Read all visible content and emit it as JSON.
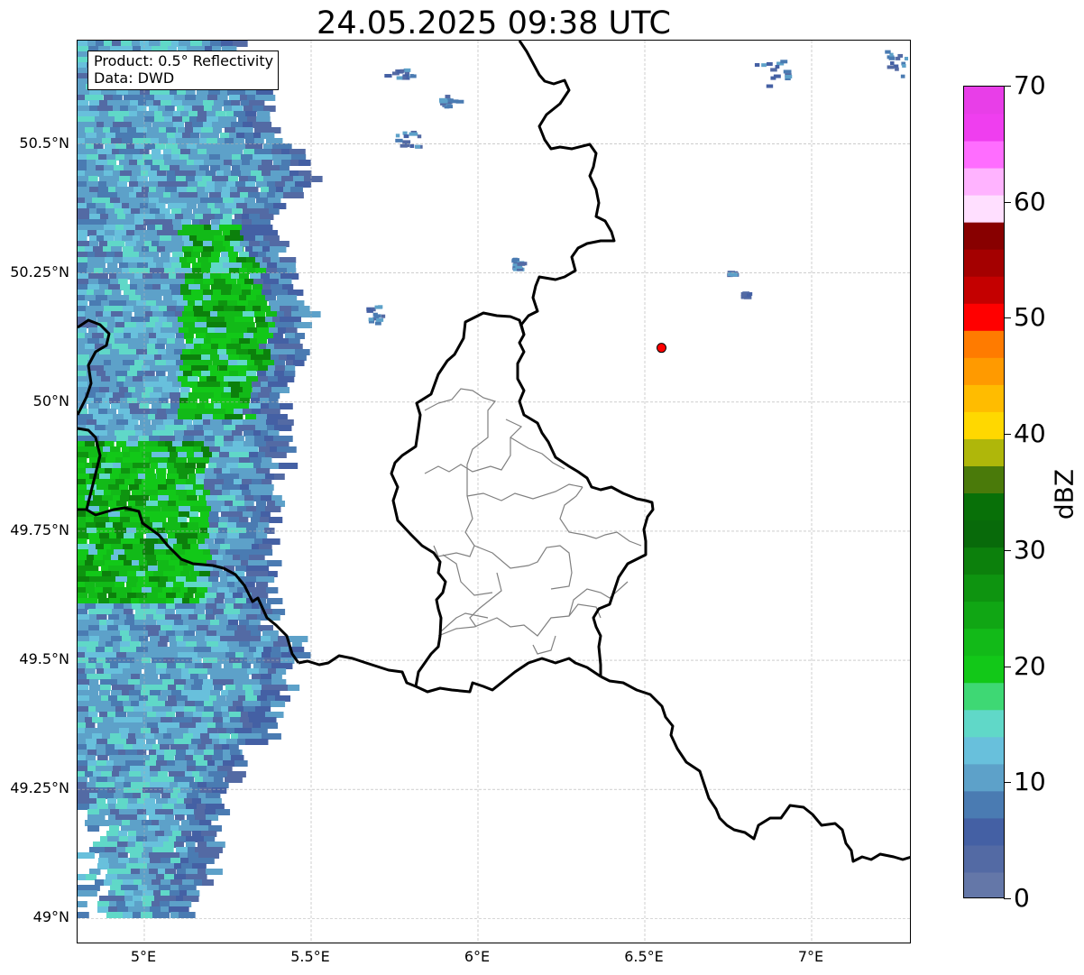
{
  "title": "24.05.2025 09:38 UTC",
  "infobox": {
    "product": "Product: 0.5° Reflectivity",
    "data": "Data: DWD"
  },
  "lat_ticks": [
    {
      "label": "50.5°N",
      "value": 50.5
    },
    {
      "label": "50.25°N",
      "value": 50.25
    },
    {
      "label": "50°N",
      "value": 50.0
    },
    {
      "label": "49.75°N",
      "value": 49.75
    },
    {
      "label": "49.5°N",
      "value": 49.5
    },
    {
      "label": "49.25°N",
      "value": 49.25
    },
    {
      "label": "49°N",
      "value": 49.0
    }
  ],
  "lon_ticks": [
    {
      "label": "5°E",
      "value": 5.0
    },
    {
      "label": "5.5°E",
      "value": 5.5
    },
    {
      "label": "6°E",
      "value": 6.0
    },
    {
      "label": "6.5°E",
      "value": 6.5
    },
    {
      "label": "7°E",
      "value": 7.0
    }
  ],
  "extent": {
    "lon_min": 4.8,
    "lon_max": 7.3,
    "lat_min": 48.95,
    "lat_max": 50.7
  },
  "marker": {
    "lon": 6.55,
    "lat": 50.105,
    "color": "#ff0000"
  },
  "colorbar": {
    "title": "dBZ",
    "min": 0,
    "max": 70,
    "tick_labels": [
      "0",
      "10",
      "20",
      "30",
      "40",
      "50",
      "60",
      "70"
    ],
    "tick_values": [
      0,
      10,
      20,
      30,
      40,
      50,
      60,
      70
    ],
    "colors": [
      "#6477a8",
      "#536aa4",
      "#4460a4",
      "#4a7bb2",
      "#5da1c9",
      "#68c0dc",
      "#60d8c8",
      "#3ed874",
      "#12c818",
      "#12ba18",
      "#10a614",
      "#0e9410",
      "#0c800c",
      "#086a0a",
      "#087008",
      "#4a7a0a",
      "#afb70a",
      "#ffd800",
      "#ffbc00",
      "#ff9a00",
      "#ff7b00",
      "#ff0000",
      "#c40000",
      "#a40000",
      "#880000",
      "#ffdfff",
      "#ffb3ff",
      "#ff6dff",
      "#ef3eef",
      "#e83ee8"
    ]
  },
  "colors": {
    "border": "#000000",
    "district": "#808080",
    "grid": "#b0b0b0"
  }
}
